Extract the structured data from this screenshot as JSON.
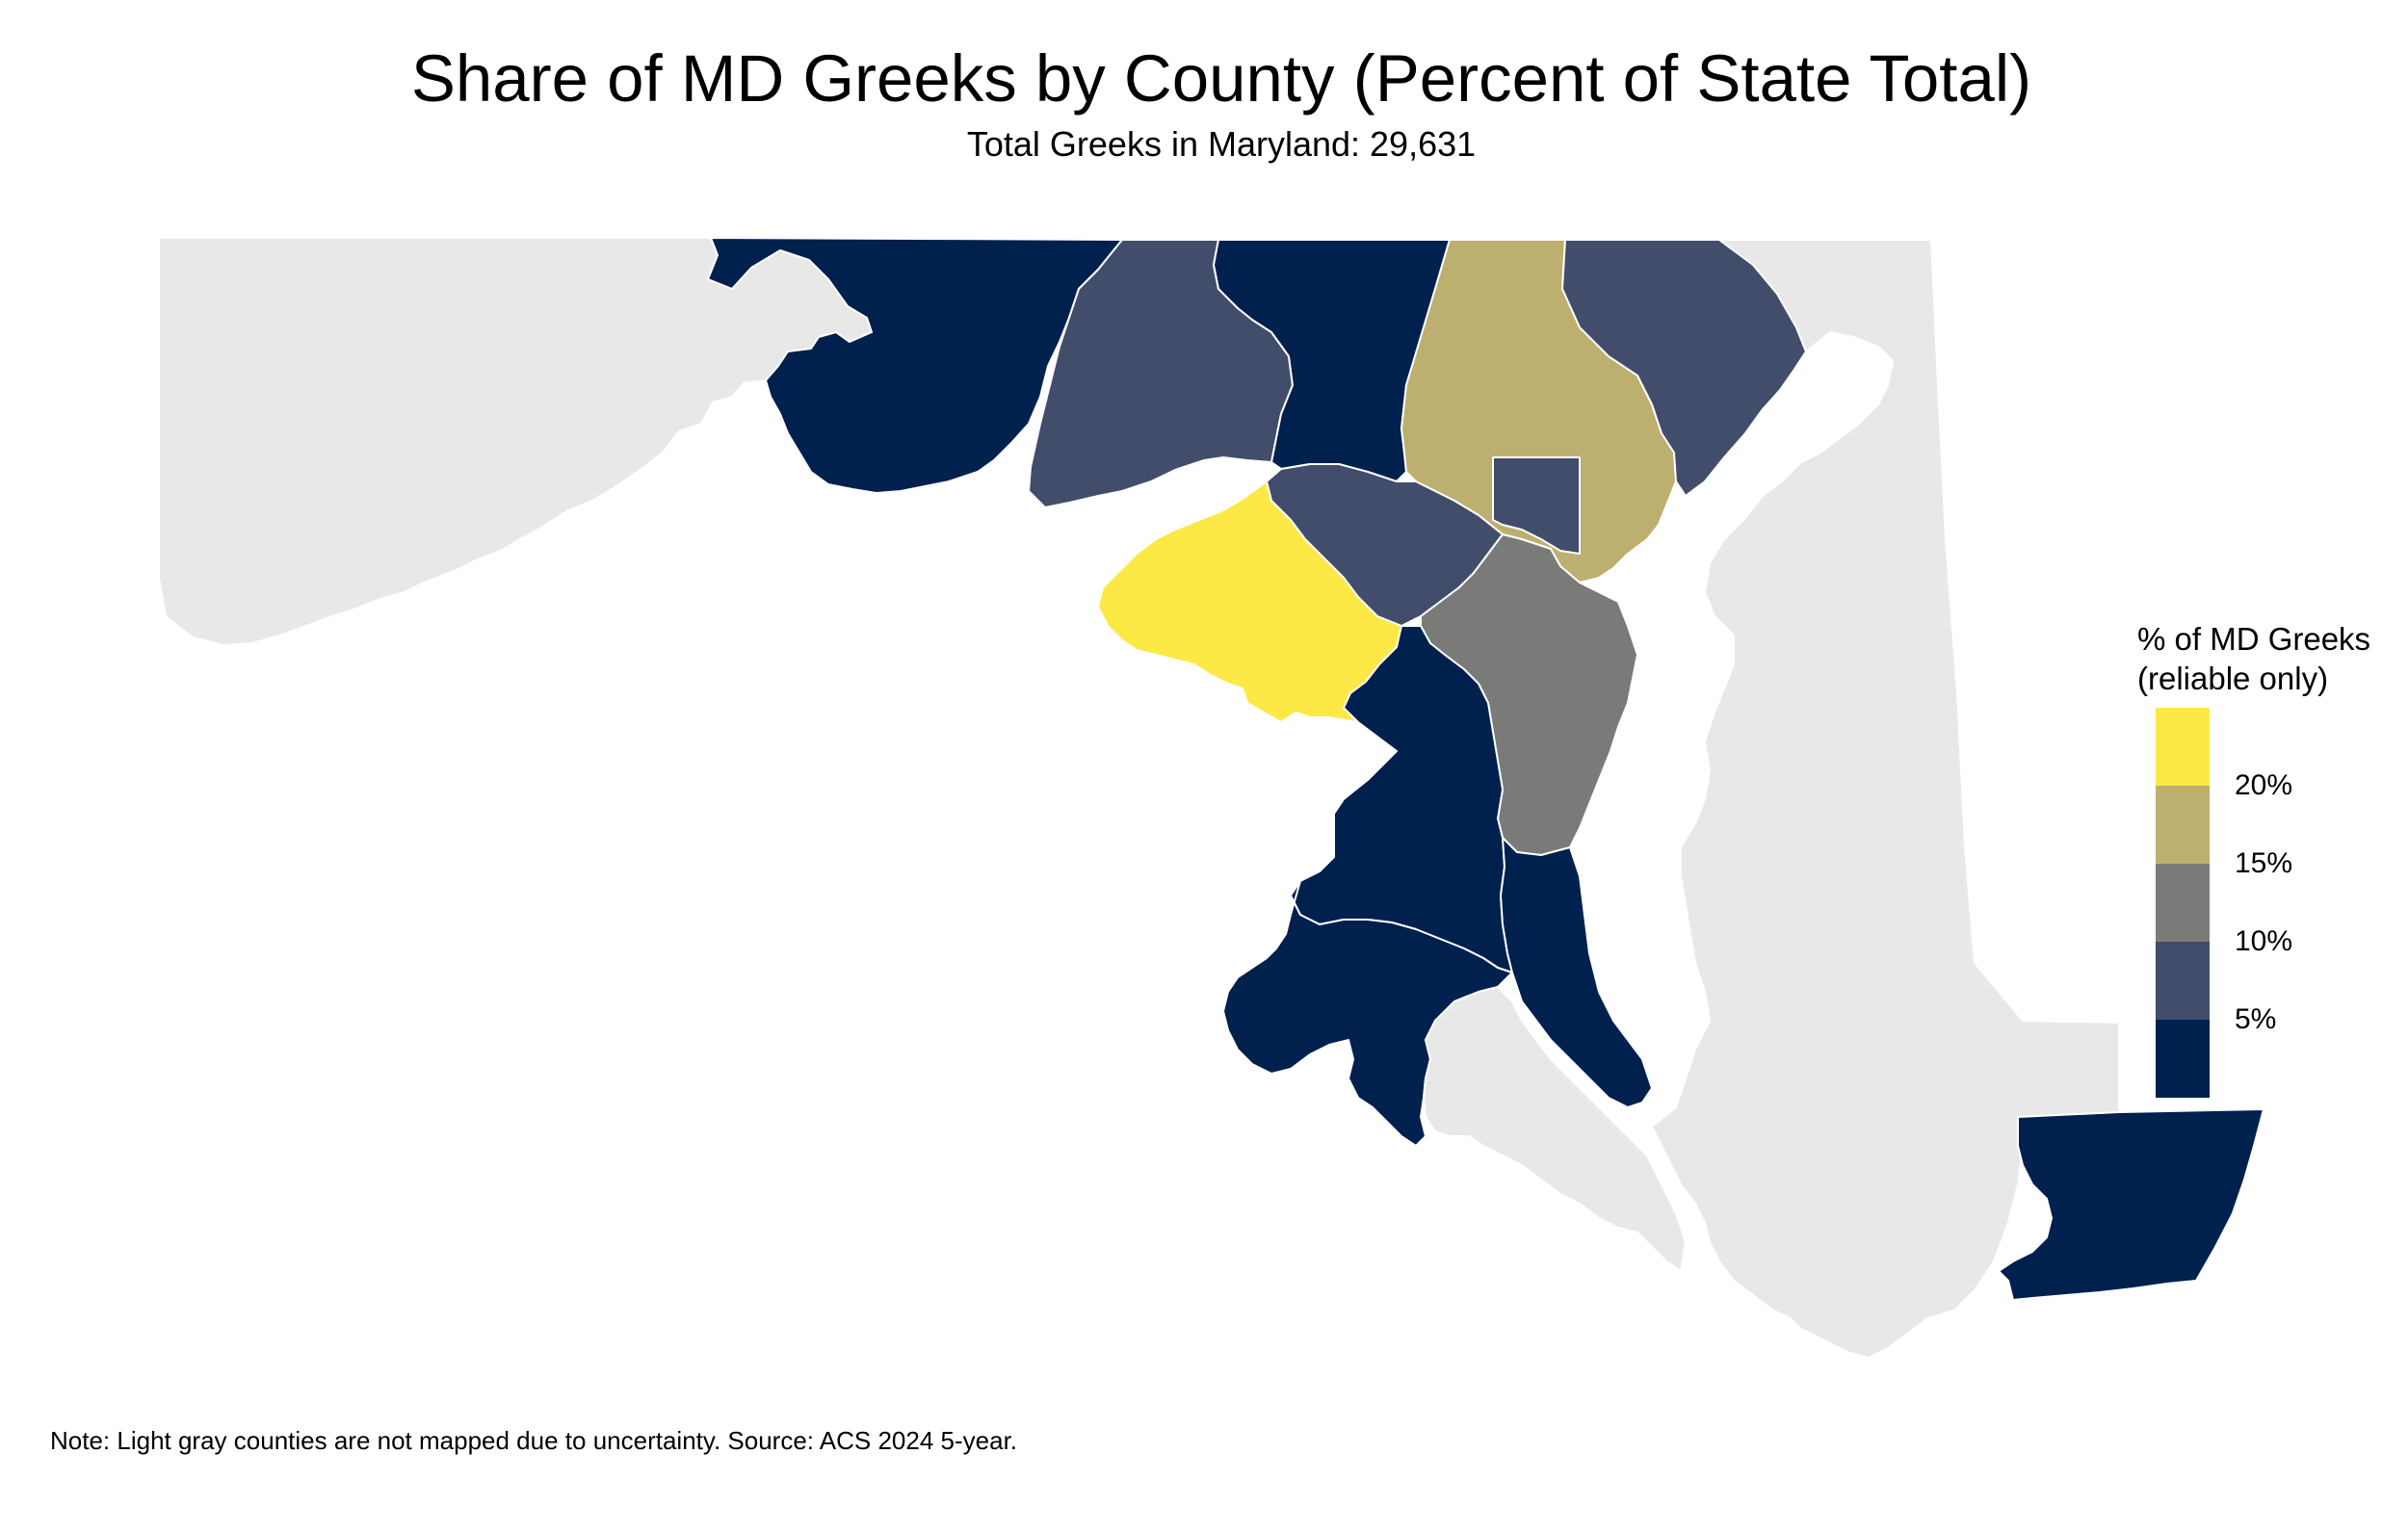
{
  "title": "Share of MD Greeks by County (Percent of State Total)",
  "subtitle": "Total Greeks in Maryland: 29,631",
  "note": "Note: Light gray counties are not mapped due to uncertainty. Source: ACS 2024 5-year.",
  "legend": {
    "title_line1": "% of MD Greeks",
    "title_line2": "(reliable only)",
    "bins": [
      {
        "color": "#fde945",
        "label": ""
      },
      {
        "color": "#bdaf6f",
        "label": "20%"
      },
      {
        "color": "#7a7b78",
        "label": "15%"
      },
      {
        "color": "#414d6b",
        "label": "10%"
      },
      {
        "color": "#00204e",
        "label": "5%"
      }
    ]
  },
  "colors": {
    "unmapped": "#e8e8e8",
    "border": "#ffffff",
    "share_lt_5": "#00204e",
    "share_5_10": "#414d6b",
    "share_10_15": "#7a7b78",
    "share_15_20": "#bdaf6f",
    "share_ge_20": "#fde945"
  }
}
